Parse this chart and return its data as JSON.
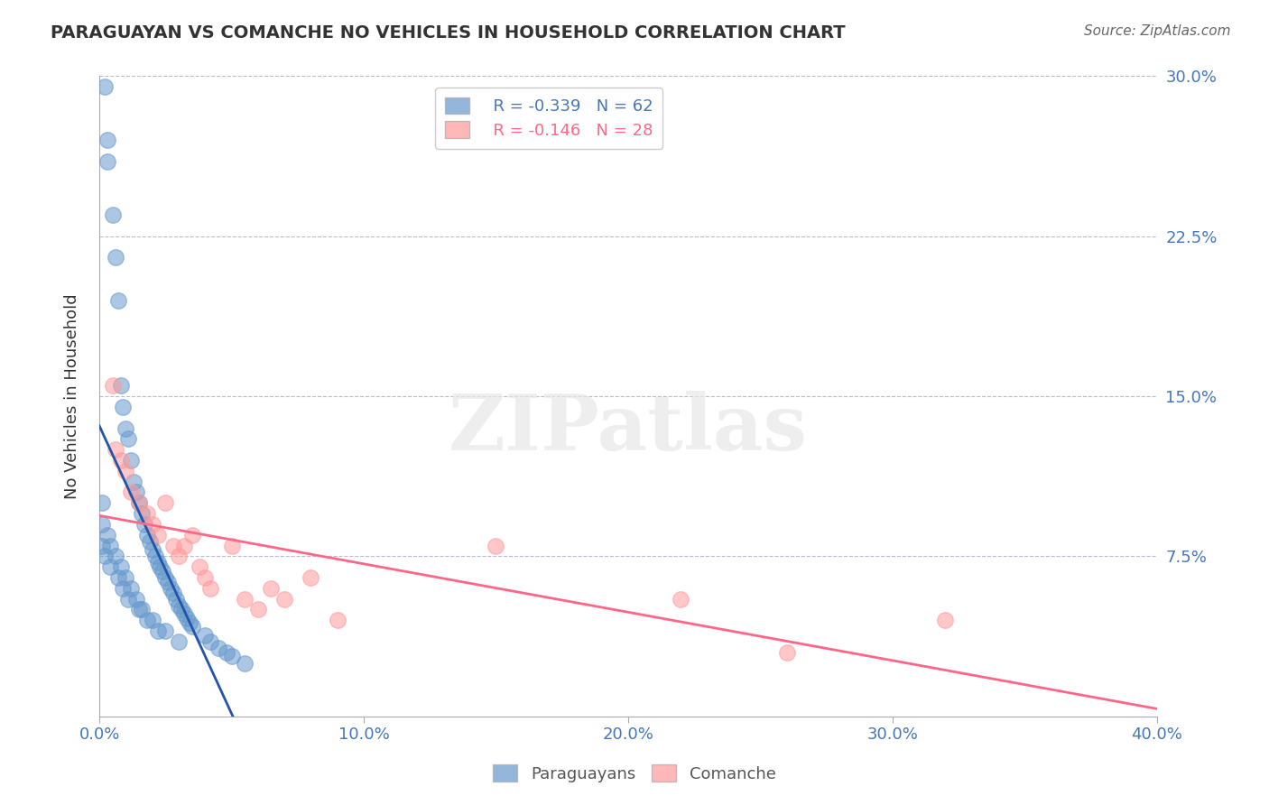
{
  "title": "PARAGUAYAN VS COMANCHE NO VEHICLES IN HOUSEHOLD CORRELATION CHART",
  "source": "Source: ZipAtlas.com",
  "xlabel": "",
  "ylabel": "No Vehicles in Household",
  "xlim": [
    0.0,
    0.4
  ],
  "ylim": [
    0.0,
    0.3
  ],
  "xticks": [
    0.0,
    0.1,
    0.2,
    0.3,
    0.4
  ],
  "xtick_labels": [
    "0.0%",
    "10.0%",
    "20.0%",
    "30.0%",
    "40.0%"
  ],
  "yticks": [
    0.0,
    0.075,
    0.15,
    0.225,
    0.3
  ],
  "ytick_labels": [
    "",
    "7.5%",
    "15.0%",
    "22.5%",
    "30.0%"
  ],
  "legend_blue_r": "R = -0.339",
  "legend_blue_n": "N = 62",
  "legend_pink_r": "R = -0.146",
  "legend_pink_n": "N = 28",
  "legend_label_blue": "Paraguayans",
  "legend_label_pink": "Comanche",
  "blue_color": "#6699CC",
  "pink_color": "#FF9999",
  "blue_line_color": "#2255AA",
  "pink_line_color": "#FF6688",
  "title_color": "#333333",
  "axis_label_color": "#4477BB",
  "watermark_color": "#DDDDDD",
  "blue_x": [
    0.002,
    0.003,
    0.003,
    0.005,
    0.006,
    0.007,
    0.008,
    0.009,
    0.01,
    0.011,
    0.012,
    0.013,
    0.014,
    0.015,
    0.016,
    0.017,
    0.018,
    0.019,
    0.02,
    0.021,
    0.022,
    0.023,
    0.024,
    0.025,
    0.026,
    0.027,
    0.028,
    0.029,
    0.03,
    0.031,
    0.032,
    0.033,
    0.034,
    0.035,
    0.04,
    0.042,
    0.045,
    0.048,
    0.05,
    0.055,
    0.003,
    0.004,
    0.006,
    0.008,
    0.01,
    0.012,
    0.014,
    0.016,
    0.018,
    0.022,
    0.001,
    0.002,
    0.004,
    0.007,
    0.009,
    0.011,
    0.015,
    0.02,
    0.025,
    0.03,
    0.001,
    0.001
  ],
  "blue_y": [
    0.295,
    0.27,
    0.26,
    0.235,
    0.215,
    0.195,
    0.155,
    0.145,
    0.135,
    0.13,
    0.12,
    0.11,
    0.105,
    0.1,
    0.095,
    0.09,
    0.085,
    0.082,
    0.078,
    0.075,
    0.072,
    0.07,
    0.068,
    0.065,
    0.063,
    0.06,
    0.058,
    0.055,
    0.052,
    0.05,
    0.048,
    0.046,
    0.044,
    0.042,
    0.038,
    0.035,
    0.032,
    0.03,
    0.028,
    0.025,
    0.085,
    0.08,
    0.075,
    0.07,
    0.065,
    0.06,
    0.055,
    0.05,
    0.045,
    0.04,
    0.08,
    0.075,
    0.07,
    0.065,
    0.06,
    0.055,
    0.05,
    0.045,
    0.04,
    0.035,
    0.09,
    0.1
  ],
  "pink_x": [
    0.005,
    0.006,
    0.008,
    0.01,
    0.012,
    0.015,
    0.018,
    0.02,
    0.022,
    0.025,
    0.028,
    0.03,
    0.032,
    0.035,
    0.038,
    0.04,
    0.042,
    0.05,
    0.055,
    0.06,
    0.065,
    0.07,
    0.08,
    0.09,
    0.15,
    0.22,
    0.26,
    0.32
  ],
  "pink_y": [
    0.155,
    0.125,
    0.12,
    0.115,
    0.105,
    0.1,
    0.095,
    0.09,
    0.085,
    0.1,
    0.08,
    0.075,
    0.08,
    0.085,
    0.07,
    0.065,
    0.06,
    0.08,
    0.055,
    0.05,
    0.06,
    0.055,
    0.065,
    0.045,
    0.08,
    0.055,
    0.03,
    0.045
  ],
  "background_color": "#FFFFFF",
  "grid_color": "#BBBBCC",
  "watermark_text": "ZIPatlas"
}
